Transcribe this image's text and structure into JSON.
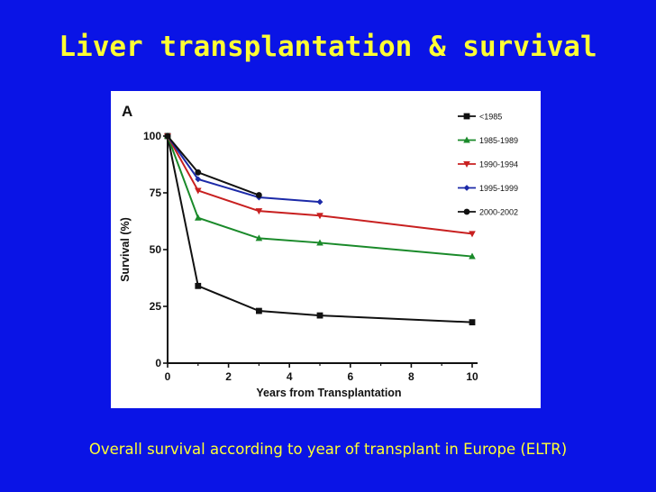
{
  "slide": {
    "title": "Liver transplantation & survival",
    "caption": "Overall survival according to year of transplant in Europe (ELTR)"
  },
  "chart_data": {
    "type": "line",
    "panel_label": "A",
    "title": "",
    "xlabel": "Years from Transplantation",
    "ylabel": "Survival (%)",
    "xlim": [
      0,
      10
    ],
    "ylim": [
      0,
      100
    ],
    "xticks": [
      0,
      2,
      4,
      6,
      8,
      10
    ],
    "yticks": [
      0,
      25,
      50,
      75,
      100
    ],
    "grid": false,
    "legend_position": "top-right",
    "series": [
      {
        "name": "<1985",
        "color": "#111111",
        "marker": "square",
        "x": [
          0,
          1,
          3,
          5,
          10
        ],
        "values": [
          100,
          34,
          23,
          21,
          18
        ]
      },
      {
        "name": "1985-1989",
        "color": "#1a8a2a",
        "marker": "triangle-up",
        "x": [
          0,
          1,
          3,
          5,
          10
        ],
        "values": [
          100,
          64,
          55,
          53,
          47
        ]
      },
      {
        "name": "1990-1994",
        "color": "#c82020",
        "marker": "triangle-down",
        "x": [
          0,
          1,
          3,
          5,
          10
        ],
        "values": [
          100,
          76,
          67,
          65,
          57
        ]
      },
      {
        "name": "1995-1999",
        "color": "#1c2aa8",
        "marker": "diamond",
        "x": [
          0,
          1,
          3,
          5
        ],
        "values": [
          100,
          81,
          73,
          71
        ]
      },
      {
        "name": "2000-2002",
        "color": "#111111",
        "marker": "circle",
        "x": [
          0,
          1,
          3
        ],
        "values": [
          100,
          84,
          74
        ]
      }
    ]
  }
}
